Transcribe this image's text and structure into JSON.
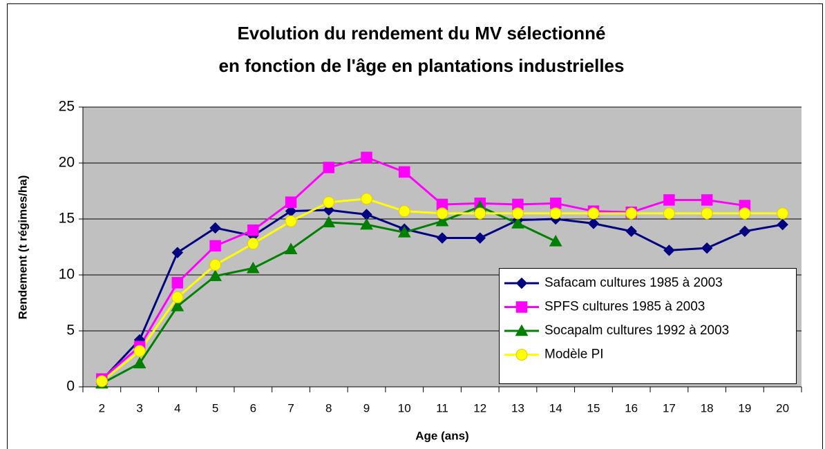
{
  "chart_data": {
    "type": "line",
    "title": [
      "Evolution du rendement du MV sélectionné",
      "en fonction de l'âge en plantations industrielles"
    ],
    "x_label": "Age (ans)",
    "y_label": "Rendement (t régimes/ha)",
    "categories": [
      2,
      3,
      4,
      5,
      6,
      7,
      8,
      9,
      10,
      11,
      12,
      13,
      14,
      15,
      16,
      17,
      18,
      19,
      20
    ],
    "series": [
      {
        "name": "Safacam cultures 1985 à 2003",
        "color": "#000080",
        "marker": "diamond",
        "values": [
          0.6,
          4.2,
          12.0,
          14.2,
          13.5,
          15.7,
          15.8,
          15.4,
          14.1,
          13.3,
          13.3,
          14.9,
          15.0,
          14.6,
          13.9,
          12.2,
          12.4,
          13.9,
          14.5
        ]
      },
      {
        "name": "SPFS cultures 1985 à 2003",
        "color": "#ff00ff",
        "marker": "square",
        "values": [
          0.7,
          3.6,
          9.3,
          12.6,
          14.0,
          16.5,
          19.6,
          20.5,
          19.2,
          16.3,
          16.4,
          16.3,
          16.4,
          15.7,
          15.6,
          16.7,
          16.7,
          16.2,
          null
        ]
      },
      {
        "name": "Socapalm cultures 1992 à 2003",
        "color": "#008000",
        "marker": "triangle",
        "values": [
          0.3,
          2.1,
          7.2,
          9.9,
          10.6,
          12.3,
          14.7,
          14.5,
          13.8,
          14.8,
          16.1,
          14.6,
          13.0,
          null,
          null,
          null,
          null,
          null,
          null
        ]
      },
      {
        "name": "Modèle PI",
        "color": "#ffff00",
        "marker": "circle",
        "values": [
          0.5,
          3.2,
          8.0,
          10.9,
          12.8,
          14.8,
          16.5,
          16.8,
          15.7,
          15.5,
          15.5,
          15.5,
          15.5,
          15.5,
          15.5,
          15.5,
          15.5,
          15.5,
          15.5
        ]
      }
    ],
    "ylim": [
      0,
      25
    ],
    "yticks": [
      0,
      5,
      10,
      15,
      20,
      25
    ],
    "grid": true,
    "plot_background": "#c0c0c0",
    "legend": "lower right"
  }
}
